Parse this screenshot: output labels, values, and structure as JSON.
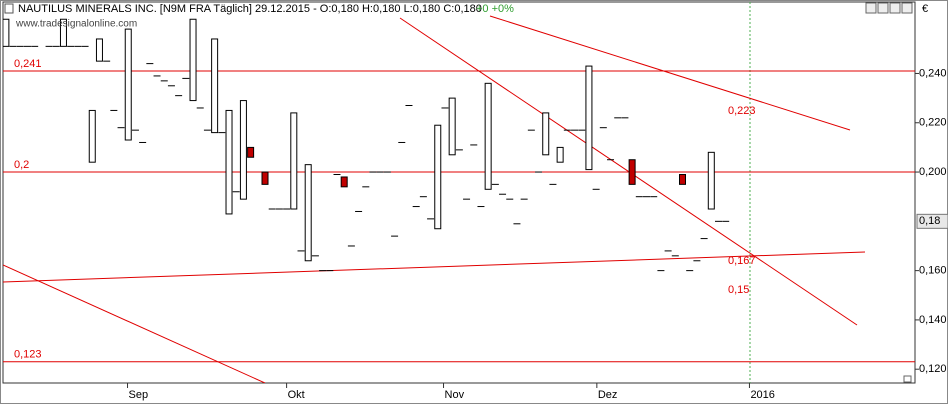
{
  "chart_data": {
    "type": "candlestick",
    "title": "NAUTILUS MINERALS INC. [N9M FRA  Täglich] 29.12.2015 - O:0,180 H:0,180 L:0,180 C:0,180",
    "change": "+0 +0%",
    "watermark": "www.tradesignalonline.com",
    "currency": "€",
    "x": [
      0,
      1,
      2,
      3,
      4,
      6,
      7,
      8,
      9,
      10,
      11,
      12,
      13,
      14,
      15,
      16,
      17,
      18,
      19,
      20,
      21,
      22,
      23,
      24,
      25,
      26,
      27,
      28,
      29,
      30,
      31,
      32,
      33,
      34,
      36,
      37,
      38,
      39,
      40,
      41,
      42,
      43,
      44,
      45,
      46,
      47,
      48,
      49,
      50,
      51,
      52,
      53,
      54,
      55,
      56,
      57,
      58,
      59,
      60,
      61,
      62,
      63,
      64,
      65,
      66,
      67,
      68,
      69,
      70,
      71,
      72,
      73,
      74,
      75,
      76,
      77,
      78,
      79,
      80,
      81,
      82,
      83,
      84,
      85,
      86,
      87,
      88,
      89,
      90,
      91,
      92,
      93,
      94,
      95,
      96,
      97,
      98,
      99,
      100
    ],
    "open": [
      0.251,
      0.251,
      0.251,
      0.251,
      0.251,
      0.251,
      0.251,
      0.251,
      0.251,
      0.251,
      0.251,
      0.204,
      0.245,
      0.245,
      0.225,
      0.218,
      0.213,
      0.217,
      0.212,
      0.244,
      0.239,
      0.237,
      0.235,
      0.231,
      0.238,
      0.229,
      0.226,
      0.217,
      0.216,
      0.216,
      0.183,
      0.192,
      0.189,
      0.21,
      0.2,
      0.185,
      0.185,
      0.185,
      0.185,
      0.168,
      0.164,
      0.166,
      0.16,
      0.16,
      0.199,
      0.198,
      0.17,
      0.184,
      0.194,
      0.2,
      0.2,
      0.2,
      0.174,
      0.212,
      0.227,
      0.186,
      0.19,
      0.181,
      0.177,
      0.226,
      0.207,
      0.209,
      0.189,
      0.211,
      0.186,
      0.193,
      0.195,
      0.191,
      0.189,
      0.179,
      0.189,
      0.217,
      0.2,
      0.207,
      0.195,
      0.204,
      0.217,
      0.217,
      0.217,
      0.201,
      0.193,
      0.218,
      0.205,
      0.222,
      0.222,
      0.205,
      0.19,
      0.19,
      0.19,
      0.16,
      0.168,
      0.166,
      0.199,
      0.16,
      0.164,
      0.173,
      0.185,
      0.18,
      0.18
    ],
    "close": [
      0.262,
      0.251,
      0.251,
      0.251,
      0.251,
      0.251,
      0.251,
      0.262,
      0.251,
      0.251,
      0.251,
      0.225,
      0.254,
      0.245,
      0.225,
      0.218,
      0.258,
      0.217,
      0.212,
      0.244,
      0.239,
      0.237,
      0.235,
      0.231,
      0.238,
      0.262,
      0.226,
      0.217,
      0.254,
      0.216,
      0.225,
      0.192,
      0.229,
      0.206,
      0.195,
      0.185,
      0.185,
      0.185,
      0.224,
      0.168,
      0.203,
      0.166,
      0.16,
      0.16,
      0.199,
      0.194,
      0.17,
      0.184,
      0.194,
      0.2,
      0.2,
      0.2,
      0.174,
      0.212,
      0.227,
      0.186,
      0.19,
      0.181,
      0.219,
      0.226,
      0.23,
      0.209,
      0.189,
      0.211,
      0.186,
      0.236,
      0.195,
      0.191,
      0.189,
      0.179,
      0.189,
      0.217,
      0.2,
      0.224,
      0.195,
      0.21,
      0.217,
      0.217,
      0.217,
      0.243,
      0.193,
      0.218,
      0.205,
      0.222,
      0.222,
      0.195,
      0.19,
      0.19,
      0.19,
      0.16,
      0.168,
      0.166,
      0.195,
      0.16,
      0.164,
      0.173,
      0.208,
      0.18,
      0.18
    ],
    "up_color": "#ffffff",
    "down_color": "#c00000",
    "xlim": [
      -0.4,
      126.3
    ],
    "xticks": [
      {
        "value": 16.9,
        "label": "Sep"
      },
      {
        "value": 39,
        "label": "Okt"
      },
      {
        "value": 60.8,
        "label": "Nov"
      },
      {
        "value": 82.1,
        "label": "Dez"
      },
      {
        "value": 103.3,
        "label": "2016"
      }
    ],
    "ylim": [
      0.1144,
      0.269
    ],
    "yticks": [
      {
        "value": 0.12,
        "label": "0,120"
      },
      {
        "value": 0.14,
        "label": "0,140"
      },
      {
        "value": 0.16,
        "label": "0,160"
      },
      {
        "value": 0.2,
        "label": "0,200"
      },
      {
        "value": 0.22,
        "label": "0,220"
      },
      {
        "value": 0.24,
        "label": "0,240"
      }
    ],
    "last_price": {
      "value": 0.18,
      "label": "0,18"
    },
    "levels": [
      {
        "value": 0.241,
        "label": "0,241"
      },
      {
        "value": 0.2,
        "label": "0,2"
      },
      {
        "value": 0.123,
        "label": "0,123"
      }
    ],
    "level_color": "#e00000",
    "annotations": [
      "0,223",
      "0,167",
      "0,15"
    ]
  }
}
